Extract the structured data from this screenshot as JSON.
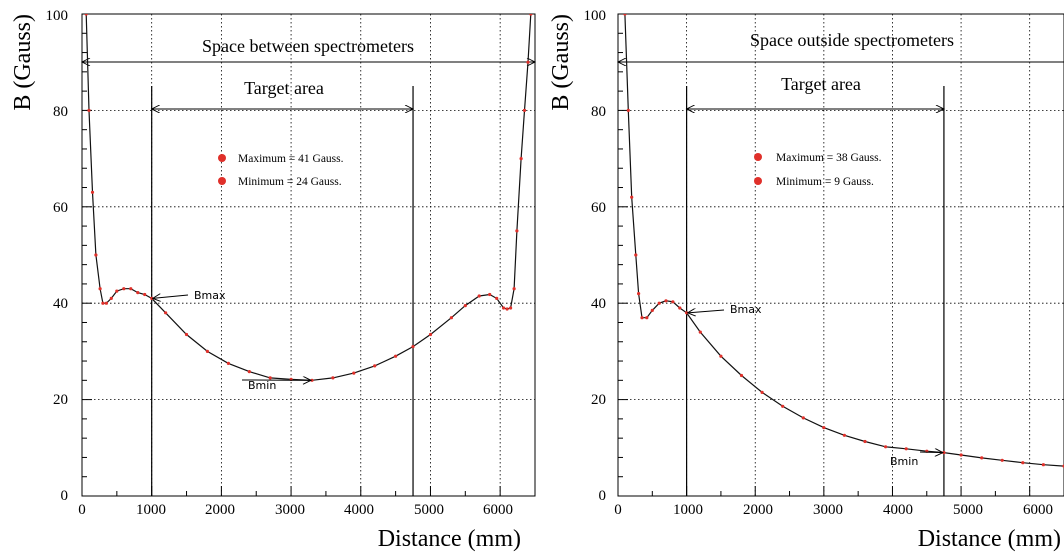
{
  "chart_data": [
    {
      "type": "line",
      "xlabel": "Distance (mm)",
      "ylabel": "B (Gauss)",
      "xlim": [
        0,
        6500
      ],
      "ylim": [
        0,
        100
      ],
      "xticks": [
        "0",
        "1000",
        "2000",
        "3000",
        "4000",
        "5000",
        "6000"
      ],
      "yticks": [
        "0",
        "20",
        "40",
        "60",
        "80",
        "100"
      ],
      "grid": true,
      "annotations": {
        "space_label": "Space between spectrometers",
        "target_label": "Target area",
        "bmax_label": "Bmax",
        "bmin_label": "Bmin",
        "target_range": [
          1000,
          4750
        ],
        "bmax_point": [
          1000,
          41
        ],
        "bmin_point": [
          3300,
          24
        ]
      },
      "legend": [
        "Maximum = 41 Gauss.",
        "Minimum  = 24 Gauss."
      ],
      "series_color": "#e0302a",
      "x": [
        60,
        100,
        150,
        200,
        260,
        300,
        350,
        420,
        500,
        600,
        700,
        800,
        900,
        1000,
        1200,
        1500,
        1800,
        2100,
        2400,
        2700,
        3000,
        3300,
        3600,
        3900,
        4200,
        4500,
        4750,
        5000,
        5300,
        5500,
        5700,
        5850,
        5950,
        6050,
        6100,
        6150,
        6200,
        6240,
        6300,
        6350,
        6400,
        6440
      ],
      "y": [
        100,
        80,
        63,
        50,
        43,
        40,
        40,
        41,
        42.5,
        43,
        43,
        42.2,
        41.8,
        41,
        38,
        33.5,
        30,
        27.5,
        25.8,
        24.5,
        24.2,
        24,
        24.5,
        25.5,
        27,
        29,
        31,
        33.5,
        37,
        39.5,
        41.5,
        41.8,
        41,
        39,
        38.8,
        39,
        43,
        55,
        70,
        80,
        90,
        100
      ]
    },
    {
      "type": "line",
      "xlabel": "Distance (mm)",
      "ylabel": "B (Gauss)",
      "xlim": [
        0,
        6500
      ],
      "ylim": [
        0,
        100
      ],
      "xticks": [
        "0",
        "1000",
        "2000",
        "3000",
        "4000",
        "5000",
        "6000"
      ],
      "yticks": [
        "0",
        "20",
        "40",
        "60",
        "80",
        "100"
      ],
      "grid": true,
      "annotations": {
        "space_label": "Space outside spectrometers",
        "target_label": "Target area",
        "bmax_label": "Bmax",
        "bmin_label": "Bmin",
        "target_range": [
          1000,
          4750
        ],
        "bmax_point": [
          1000,
          38
        ],
        "bmin_point": [
          4750,
          9
        ]
      },
      "legend": [
        "Maximum = 38 Gauss.",
        "Minimum  = 9 Gauss."
      ],
      "series_color": "#e0302a",
      "x": [
        100,
        150,
        200,
        260,
        300,
        350,
        420,
        500,
        600,
        700,
        800,
        900,
        1000,
        1200,
        1500,
        1800,
        2100,
        2400,
        2700,
        3000,
        3300,
        3600,
        3900,
        4200,
        4500,
        4750,
        5000,
        5300,
        5600,
        5900,
        6200,
        6500
      ],
      "y": [
        100,
        80,
        62,
        50,
        42,
        37,
        37,
        38.5,
        40,
        40.5,
        40.3,
        39,
        38,
        34,
        29,
        25,
        21.5,
        18.6,
        16.2,
        14.2,
        12.6,
        11.3,
        10.2,
        9.8,
        9.3,
        9,
        8.5,
        7.9,
        7.4,
        6.9,
        6.5,
        6.2
      ]
    }
  ]
}
